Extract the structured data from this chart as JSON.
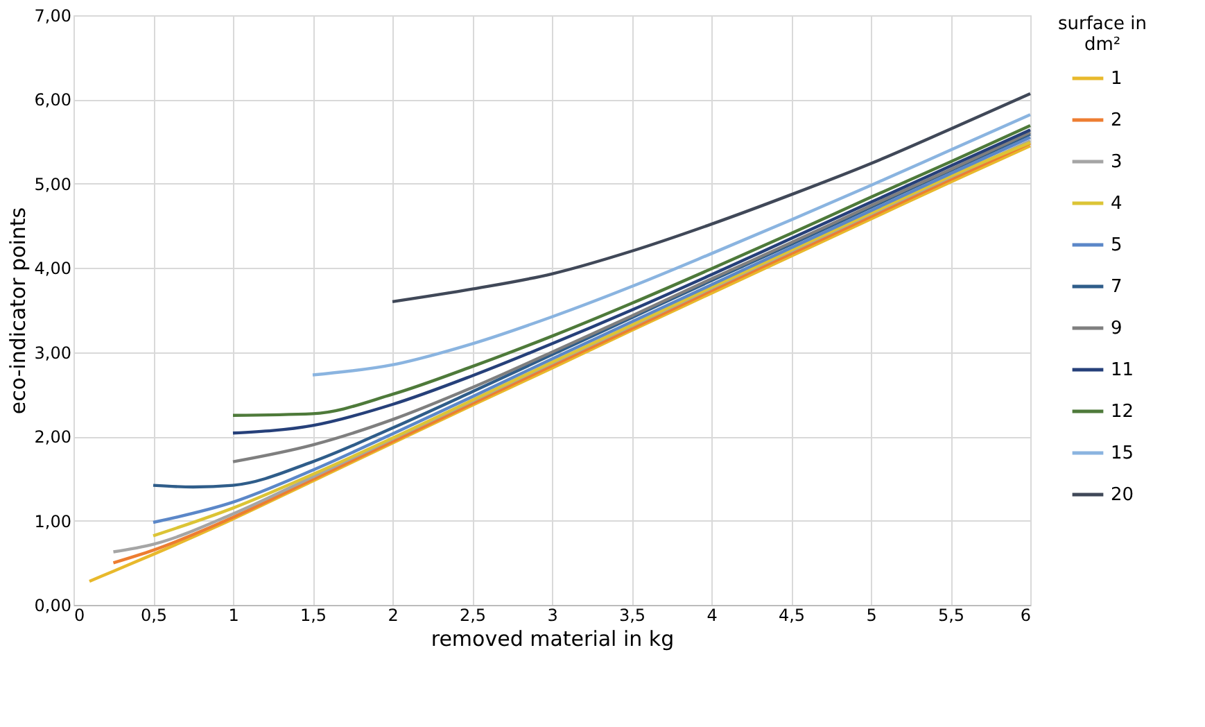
{
  "chart_data": {
    "type": "line",
    "xlabel": "removed material in kg",
    "ylabel": "eco-indicator points",
    "legend_title": "surface in dm²",
    "legend": "right",
    "grid": true,
    "marker": "none",
    "line_style": "solid",
    "xlim": [
      0,
      6
    ],
    "ylim": [
      0,
      7
    ],
    "xticks": [
      0,
      {
        "value": 0.5,
        "label": "0,5"
      },
      1,
      {
        "value": 1.5,
        "label": "1,5"
      },
      2,
      {
        "value": 2.5,
        "label": "2,5"
      },
      3,
      {
        "value": 3.5,
        "label": "3,5"
      },
      4,
      {
        "value": 4.5,
        "label": "4,5"
      },
      5,
      {
        "value": 5.5,
        "label": "5,5"
      },
      6
    ],
    "yticks": [
      {
        "value": 0,
        "label": "0,00"
      },
      {
        "value": 1,
        "label": "1,00"
      },
      {
        "value": 2,
        "label": "2,00"
      },
      {
        "value": 3,
        "label": "3,00"
      },
      {
        "value": 4,
        "label": "4,00"
      },
      {
        "value": 5,
        "label": "5,00"
      },
      {
        "value": 6,
        "label": "6,00"
      },
      {
        "value": 7,
        "label": "7,00"
      }
    ],
    "series": [
      {
        "name": "1",
        "color": "#e8b92c",
        "x": [
          0.1,
          0.25,
          0.5,
          1,
          1.5,
          2,
          2.5,
          3,
          3.5,
          4,
          4.5,
          5,
          5.5,
          6
        ],
        "values": [
          0.28,
          0.4,
          0.6,
          1.02,
          1.47,
          1.92,
          2.37,
          2.81,
          3.26,
          3.7,
          4.14,
          4.58,
          5.02,
          5.45
        ]
      },
      {
        "name": "2",
        "color": "#ed7d31",
        "x": [
          0.25,
          0.5,
          1,
          1.5,
          2,
          2.5,
          3,
          3.5,
          4,
          4.5,
          5,
          5.5,
          6
        ],
        "values": [
          0.5,
          0.65,
          1.04,
          1.49,
          1.94,
          2.39,
          2.84,
          3.28,
          3.73,
          4.17,
          4.61,
          5.05,
          5.48
        ]
      },
      {
        "name": "3",
        "color": "#a5a5a5",
        "x": [
          0.25,
          0.5,
          1,
          1.5,
          2,
          2.5,
          3,
          3.5,
          4,
          4.5,
          5,
          5.5,
          6
        ],
        "values": [
          0.63,
          0.72,
          1.08,
          1.52,
          1.97,
          2.42,
          2.87,
          3.31,
          3.76,
          4.2,
          4.64,
          5.08,
          5.51
        ]
      },
      {
        "name": "4",
        "color": "#dcc435",
        "x": [
          0.5,
          1,
          1.5,
          2,
          2.5,
          3,
          3.5,
          4,
          4.5,
          5,
          5.5,
          6
        ],
        "values": [
          0.82,
          1.15,
          1.55,
          1.98,
          2.43,
          2.88,
          3.32,
          3.77,
          4.21,
          4.65,
          5.09,
          5.49
        ]
      },
      {
        "name": "5",
        "color": "#5b87c8",
        "x": [
          0.5,
          1,
          1.5,
          2,
          2.5,
          3,
          3.5,
          4,
          4.5,
          5,
          5.5,
          6
        ],
        "values": [
          0.98,
          1.22,
          1.6,
          2.03,
          2.47,
          2.92,
          3.36,
          3.8,
          4.24,
          4.68,
          5.12,
          5.55
        ]
      },
      {
        "name": "7",
        "color": "#2f5d8a",
        "x": [
          0.5,
          0.75,
          1,
          1.5,
          2,
          2.5,
          3,
          3.5,
          4,
          4.5,
          5,
          5.5,
          6
        ],
        "values": [
          1.42,
          1.4,
          1.42,
          1.7,
          2.1,
          2.53,
          2.97,
          3.41,
          3.85,
          4.28,
          4.72,
          5.16,
          5.59
        ]
      },
      {
        "name": "9",
        "color": "#7f7f7f",
        "x": [
          1,
          1.5,
          2,
          2.5,
          3,
          3.5,
          4,
          4.5,
          5,
          5.5,
          6
        ],
        "values": [
          1.7,
          1.9,
          2.2,
          2.58,
          3.0,
          3.43,
          3.87,
          4.3,
          4.74,
          5.17,
          5.61
        ]
      },
      {
        "name": "11",
        "color": "#26407a",
        "x": [
          1,
          1.5,
          2,
          2.5,
          3,
          3.5,
          4,
          4.5,
          5,
          5.5,
          6
        ],
        "values": [
          2.04,
          2.13,
          2.38,
          2.72,
          3.1,
          3.5,
          3.92,
          4.35,
          4.78,
          5.21,
          5.64
        ]
      },
      {
        "name": "12",
        "color": "#4e7a3a",
        "x": [
          1,
          1.5,
          2,
          2.5,
          3,
          3.5,
          4,
          4.5,
          5,
          5.5,
          6
        ],
        "values": [
          2.25,
          2.27,
          2.5,
          2.83,
          3.19,
          3.58,
          3.99,
          4.41,
          4.84,
          5.26,
          5.69
        ]
      },
      {
        "name": "15",
        "color": "#8ab4e0",
        "x": [
          1.5,
          2,
          2.5,
          3,
          3.5,
          4,
          4.5,
          5,
          5.5,
          6
        ],
        "values": [
          2.73,
          2.85,
          3.1,
          3.42,
          3.78,
          4.17,
          4.57,
          4.98,
          5.4,
          5.82
        ]
      },
      {
        "name": "20",
        "color": "#404858",
        "x": [
          2,
          2.5,
          3,
          3.5,
          4,
          4.5,
          5,
          5.5,
          6
        ],
        "values": [
          3.6,
          3.75,
          3.93,
          4.2,
          4.52,
          4.87,
          5.24,
          5.65,
          6.07
        ]
      }
    ]
  }
}
